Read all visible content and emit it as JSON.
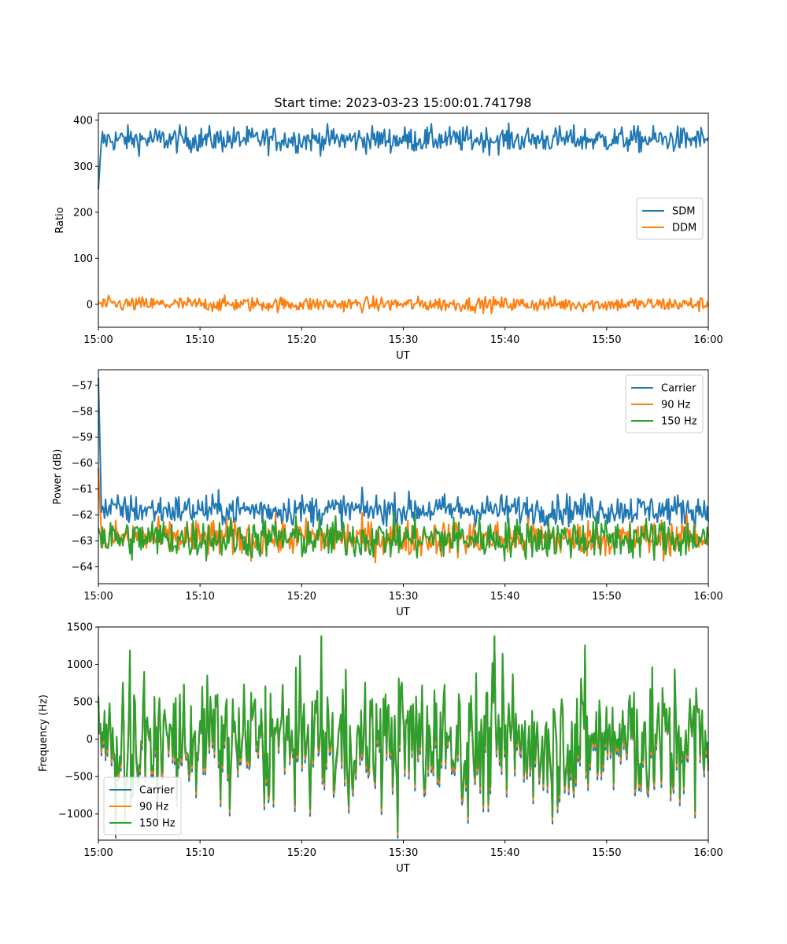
{
  "figure": {
    "title": "Start time: 2023-03-23 15:00:01.741798"
  },
  "chart_data": [
    {
      "type": "line",
      "xlabel": "UT",
      "ylabel": "Ratio",
      "xlim": [
        "15:00",
        "16:00"
      ],
      "ylim": [
        -50,
        415
      ],
      "x_ticks": [
        "15:00",
        "15:10",
        "15:20",
        "15:30",
        "15:40",
        "15:50",
        "16:00"
      ],
      "y_ticks": [
        400,
        300,
        200,
        100,
        0
      ],
      "legend": "center-right",
      "series": [
        {
          "name": "SDM",
          "color": "#1f77b4",
          "start": 250,
          "mean": 358,
          "noise": 14
        },
        {
          "name": "DDM",
          "color": "#ff7f0e",
          "start": 5,
          "mean": 0,
          "noise": 8
        }
      ]
    },
    {
      "type": "line",
      "xlabel": "UT",
      "ylabel": "Power (dB)",
      "xlim": [
        "15:00",
        "16:00"
      ],
      "ylim": [
        -64.65,
        -56.4
      ],
      "x_ticks": [
        "15:00",
        "15:10",
        "15:20",
        "15:30",
        "15:40",
        "15:50",
        "16:00"
      ],
      "y_ticks": [
        -57,
        -58,
        -59,
        -60,
        -61,
        -62,
        -63,
        -64
      ],
      "legend": "top-right",
      "series": [
        {
          "name": "Carrier",
          "color": "#1f77b4",
          "start": -56.7,
          "mean": -61.8,
          "noise": 0.3
        },
        {
          "name": "90 Hz",
          "color": "#ff7f0e",
          "start": -60.2,
          "mean": -62.9,
          "noise": 0.35
        },
        {
          "name": "150 Hz",
          "color": "#2ca02c",
          "start": -62.5,
          "mean": -62.9,
          "noise": 0.4
        }
      ]
    },
    {
      "type": "line",
      "xlabel": "UT",
      "ylabel": "Frequency (Hz)",
      "xlim": [
        "15:00",
        "16:00"
      ],
      "ylim": [
        -1350,
        1500
      ],
      "x_ticks": [
        "15:00",
        "15:10",
        "15:20",
        "15:30",
        "15:40",
        "15:50",
        "16:00"
      ],
      "y_ticks": [
        1500,
        1000,
        500,
        0,
        -500,
        -1000
      ],
      "legend": "lower-left",
      "series": [
        {
          "name": "Carrier",
          "color": "#1f77b4",
          "offset": -90
        },
        {
          "name": "90 Hz",
          "color": "#ff7f0e",
          "offset": -45
        },
        {
          "name": "150 Hz",
          "color": "#2ca02c",
          "offset": 0
        }
      ],
      "base_noise": 420
    }
  ]
}
